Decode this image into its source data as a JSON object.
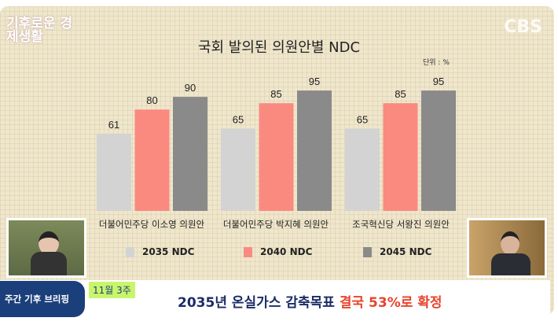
{
  "overlay": {
    "show_logo": "기후로운 경제생활",
    "channel": "CBS"
  },
  "chart_data": {
    "type": "bar",
    "title": "국회 발의된 의원안별 NDC",
    "unit_label": "단위 : %",
    "categories": [
      "더불어민주당 이소영 의원안",
      "더불어민주당 박지혜 의원안",
      "조국혁신당 서왕진 의원안"
    ],
    "series": [
      {
        "name": "2035 NDC",
        "values": [
          61,
          65,
          65
        ],
        "color": "#d3d3d3"
      },
      {
        "name": "2040 NDC",
        "values": [
          80,
          85,
          85
        ],
        "color": "#fa8a80"
      },
      {
        "name": "2045 NDC",
        "values": [
          90,
          95,
          95
        ],
        "color": "#8a8a8a"
      }
    ],
    "ylim": [
      0,
      100
    ],
    "grid": false,
    "legend": "bottom",
    "data_labels": true
  },
  "banner": {
    "segment": "주간 기후 브리핑",
    "week": "11월 3주",
    "headline_main": "2035년 온실가스 감축목표 ",
    "headline_highlight": "결국 53%로 확정"
  }
}
